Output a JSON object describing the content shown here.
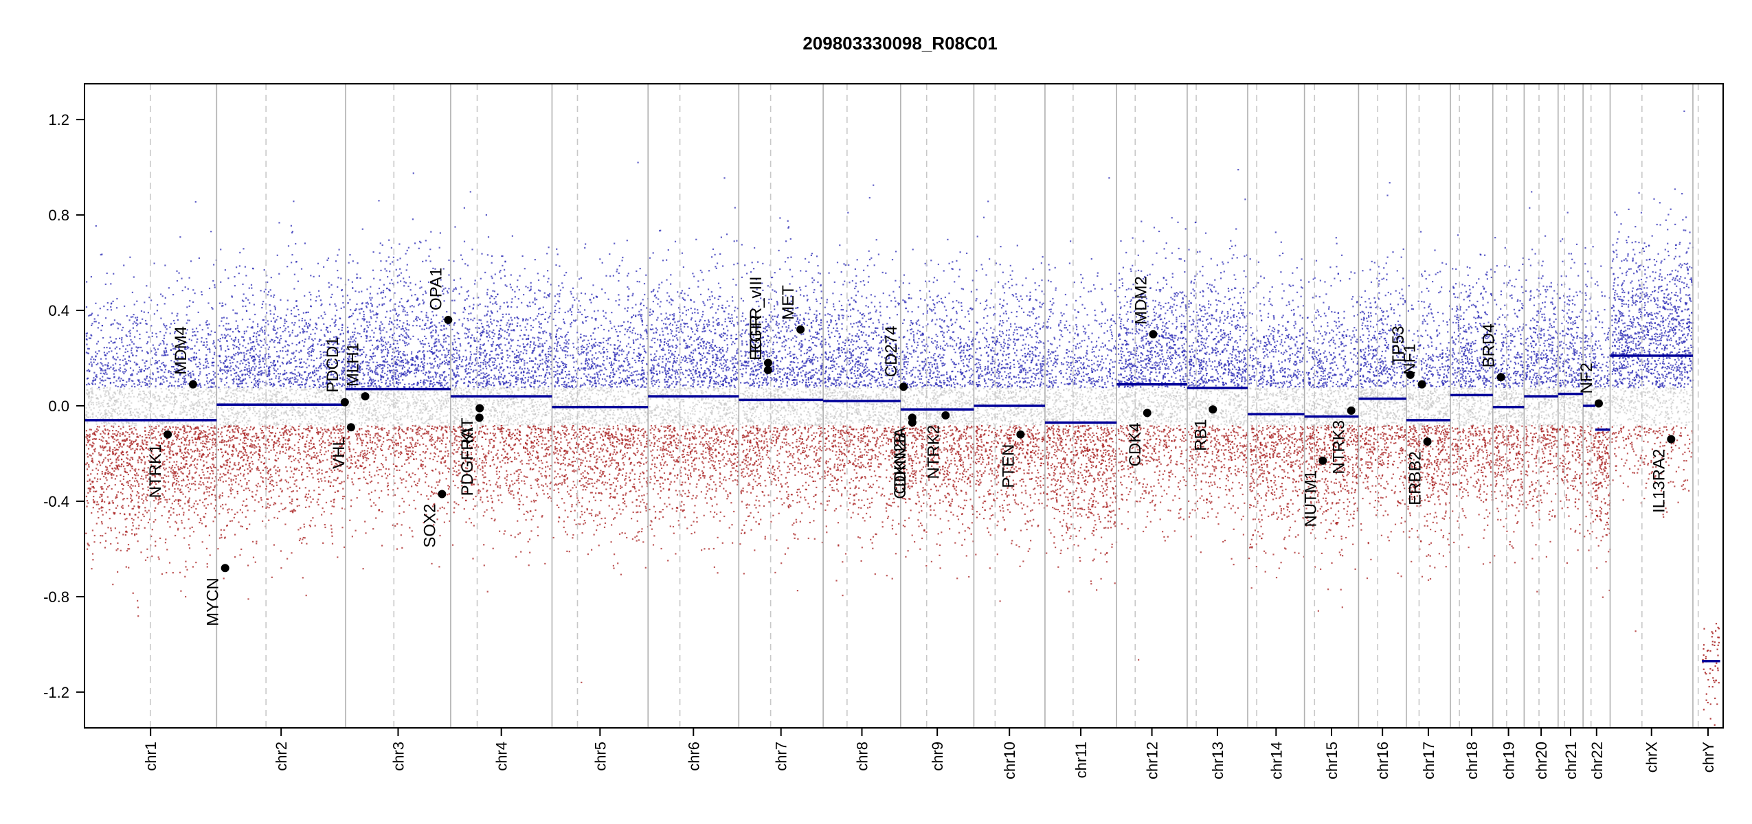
{
  "chart_data": {
    "type": "scatter",
    "title": "209803330098_R08C01",
    "xlabel": "",
    "ylabel": "",
    "ylim": [
      -1.35,
      1.35
    ],
    "y_ticks": [
      -1.2,
      -0.8,
      -0.4,
      0.0,
      0.4,
      0.8,
      1.2
    ],
    "y_tick_labels": [
      "-1.2",
      "-0.8",
      "-0.4",
      "0.0",
      "0.4",
      "0.8",
      "1.2"
    ],
    "colors": {
      "gain": "#2b2bb5",
      "loss": "#a82020",
      "neutral": "#bfbfbf",
      "segment": "#000099",
      "boundary": "#b0b0b0",
      "centromere": "#c8c8c8",
      "gene_point": "#000000"
    },
    "chromosomes": [
      {
        "name": "chr1",
        "length": 249,
        "centromere": 124,
        "segments": [
          {
            "start": 0,
            "end": 1,
            "value": -0.06
          }
        ]
      },
      {
        "name": "chr2",
        "length": 243,
        "centromere": 93,
        "segments": [
          {
            "start": 0,
            "end": 1,
            "value": 0.005
          }
        ]
      },
      {
        "name": "chr3",
        "length": 198,
        "centromere": 91,
        "segments": [
          {
            "start": 0,
            "end": 1,
            "value": 0.07
          }
        ]
      },
      {
        "name": "chr4",
        "length": 191,
        "centromere": 50,
        "segments": [
          {
            "start": 0,
            "end": 1,
            "value": 0.04
          }
        ]
      },
      {
        "name": "chr5",
        "length": 181,
        "centromere": 48,
        "segments": [
          {
            "start": 0,
            "end": 1,
            "value": -0.005
          }
        ]
      },
      {
        "name": "chr6",
        "length": 171,
        "centromere": 60,
        "segments": [
          {
            "start": 0,
            "end": 1,
            "value": 0.04
          }
        ]
      },
      {
        "name": "chr7",
        "length": 159,
        "centromere": 60,
        "segments": [
          {
            "start": 0,
            "end": 1,
            "value": 0.025
          }
        ]
      },
      {
        "name": "chr8",
        "length": 146,
        "centromere": 45,
        "segments": [
          {
            "start": 0,
            "end": 1,
            "value": 0.02
          }
        ]
      },
      {
        "name": "chr9",
        "length": 138,
        "centromere": 49,
        "segments": [
          {
            "start": 0,
            "end": 1,
            "value": -0.015
          }
        ]
      },
      {
        "name": "chr10",
        "length": 134,
        "centromere": 40,
        "segments": [
          {
            "start": 0,
            "end": 1,
            "value": 0.0
          }
        ]
      },
      {
        "name": "chr11",
        "length": 135,
        "centromere": 53,
        "segments": [
          {
            "start": 0,
            "end": 1,
            "value": -0.07
          }
        ]
      },
      {
        "name": "chr12",
        "length": 133,
        "centromere": 35,
        "segments": [
          {
            "start": 0,
            "end": 1,
            "value": 0.09
          }
        ]
      },
      {
        "name": "chr13",
        "length": 114,
        "centromere": 17,
        "segments": [
          {
            "start": 0,
            "end": 1,
            "value": 0.075
          }
        ]
      },
      {
        "name": "chr14",
        "length": 107,
        "centromere": 17,
        "segments": [
          {
            "start": 0,
            "end": 1,
            "value": -0.035
          }
        ]
      },
      {
        "name": "chr15",
        "length": 102,
        "centromere": 19,
        "segments": [
          {
            "start": 0,
            "end": 1,
            "value": -0.045
          }
        ]
      },
      {
        "name": "chr16",
        "length": 90,
        "centromere": 36,
        "segments": [
          {
            "start": 0,
            "end": 1,
            "value": 0.03
          }
        ]
      },
      {
        "name": "chr17",
        "length": 83,
        "centromere": 24,
        "segments": [
          {
            "start": 0,
            "end": 1,
            "value": -0.06
          }
        ]
      },
      {
        "name": "chr18",
        "length": 80,
        "centromere": 17,
        "segments": [
          {
            "start": 0,
            "end": 1,
            "value": 0.045
          }
        ]
      },
      {
        "name": "chr19",
        "length": 59,
        "centromere": 26,
        "segments": [
          {
            "start": 0,
            "end": 1,
            "value": -0.005
          }
        ]
      },
      {
        "name": "chr20",
        "length": 64,
        "centromere": 28,
        "segments": [
          {
            "start": 0,
            "end": 1,
            "value": 0.04
          }
        ]
      },
      {
        "name": "chr21",
        "length": 47,
        "centromere": 12,
        "segments": [
          {
            "start": 0,
            "end": 1,
            "value": 0.05
          }
        ]
      },
      {
        "name": "chr22",
        "length": 51,
        "centromere": 15,
        "segments": [
          {
            "start": 0,
            "end": 0.45,
            "value": 0.0
          },
          {
            "start": 0.45,
            "end": 1,
            "value": -0.1
          }
        ]
      },
      {
        "name": "chrX",
        "length": 156,
        "centromere": 60,
        "segments": [
          {
            "start": 0,
            "end": 1,
            "value": 0.21
          }
        ]
      },
      {
        "name": "chrY",
        "length": 57,
        "centromere": 10,
        "segments": [
          {
            "start": 0.3,
            "end": 0.9,
            "value": -1.07
          }
        ]
      }
    ],
    "genes": [
      {
        "name": "NTRK1",
        "chr": "chr1",
        "pos": 156.8,
        "value": -0.12,
        "side": "below"
      },
      {
        "name": "MDM4",
        "chr": "chr1",
        "pos": 204.5,
        "value": 0.09,
        "side": "above"
      },
      {
        "name": "MYCN",
        "chr": "chr2",
        "pos": 16.0,
        "value": -0.68,
        "side": "below"
      },
      {
        "name": "PDCD1",
        "chr": "chr2",
        "pos": 241.5,
        "value": 0.015,
        "side": "above"
      },
      {
        "name": "VHL",
        "chr": "chr3",
        "pos": 10.2,
        "value": -0.09,
        "side": "below"
      },
      {
        "name": "MLH1",
        "chr": "chr3",
        "pos": 37.0,
        "value": 0.04,
        "side": "above"
      },
      {
        "name": "SOX2",
        "chr": "chr3",
        "pos": 181.7,
        "value": -0.37,
        "side": "below"
      },
      {
        "name": "OPA1",
        "chr": "chr3",
        "pos": 193.4,
        "value": 0.36,
        "side": "above"
      },
      {
        "name": "PDGFRA",
        "chr": "chr4",
        "pos": 54.2,
        "value": -0.05,
        "side": "below"
      },
      {
        "name": "KIT",
        "chr": "chr4",
        "pos": 54.7,
        "value": -0.01,
        "side": "below"
      },
      {
        "name": "EGFR",
        "chr": "chr7",
        "pos": 55.1,
        "value": 0.15,
        "side": "above"
      },
      {
        "name": "EGFR_vIII",
        "chr": "chr7",
        "pos": 55.2,
        "value": 0.18,
        "side": "above"
      },
      {
        "name": "MET",
        "chr": "chr7",
        "pos": 116.3,
        "value": 0.32,
        "side": "above"
      },
      {
        "name": "CD274",
        "chr": "chr9",
        "pos": 5.5,
        "value": 0.08,
        "side": "above"
      },
      {
        "name": "CDKN2A",
        "chr": "chr9",
        "pos": 21.9,
        "value": -0.05,
        "side": "below"
      },
      {
        "name": "CDKN2B",
        "chr": "chr9",
        "pos": 22.0,
        "value": -0.07,
        "side": "below"
      },
      {
        "name": "NTRK2",
        "chr": "chr9",
        "pos": 84.7,
        "value": -0.04,
        "side": "below"
      },
      {
        "name": "PTEN",
        "chr": "chr10",
        "pos": 87.9,
        "value": -0.12,
        "side": "below"
      },
      {
        "name": "MDM2",
        "chr": "chr12",
        "pos": 68.9,
        "value": 0.3,
        "side": "above"
      },
      {
        "name": "CDK4",
        "chr": "chr12",
        "pos": 57.7,
        "value": -0.03,
        "side": "below"
      },
      {
        "name": "RB1",
        "chr": "chr13",
        "pos": 48.4,
        "value": -0.015,
        "side": "below"
      },
      {
        "name": "NUTM1",
        "chr": "chr15",
        "pos": 34.6,
        "value": -0.23,
        "side": "below"
      },
      {
        "name": "NTRK3",
        "chr": "chr15",
        "pos": 88.1,
        "value": -0.02,
        "side": "below"
      },
      {
        "name": "TP53",
        "chr": "chr17",
        "pos": 7.6,
        "value": 0.13,
        "side": "above"
      },
      {
        "name": "NF1",
        "chr": "chr17",
        "pos": 29.4,
        "value": 0.09,
        "side": "above"
      },
      {
        "name": "ERBB2",
        "chr": "chr17",
        "pos": 39.7,
        "value": -0.15,
        "side": "below"
      },
      {
        "name": "BRD4",
        "chr": "chr19",
        "pos": 15.3,
        "value": 0.12,
        "side": "above"
      },
      {
        "name": "NF2",
        "chr": "chr22",
        "pos": 29.6,
        "value": 0.01,
        "side": "above"
      },
      {
        "name": "IL13RA2",
        "chr": "chrX",
        "pos": 115.0,
        "value": -0.14,
        "side": "below"
      }
    ]
  }
}
